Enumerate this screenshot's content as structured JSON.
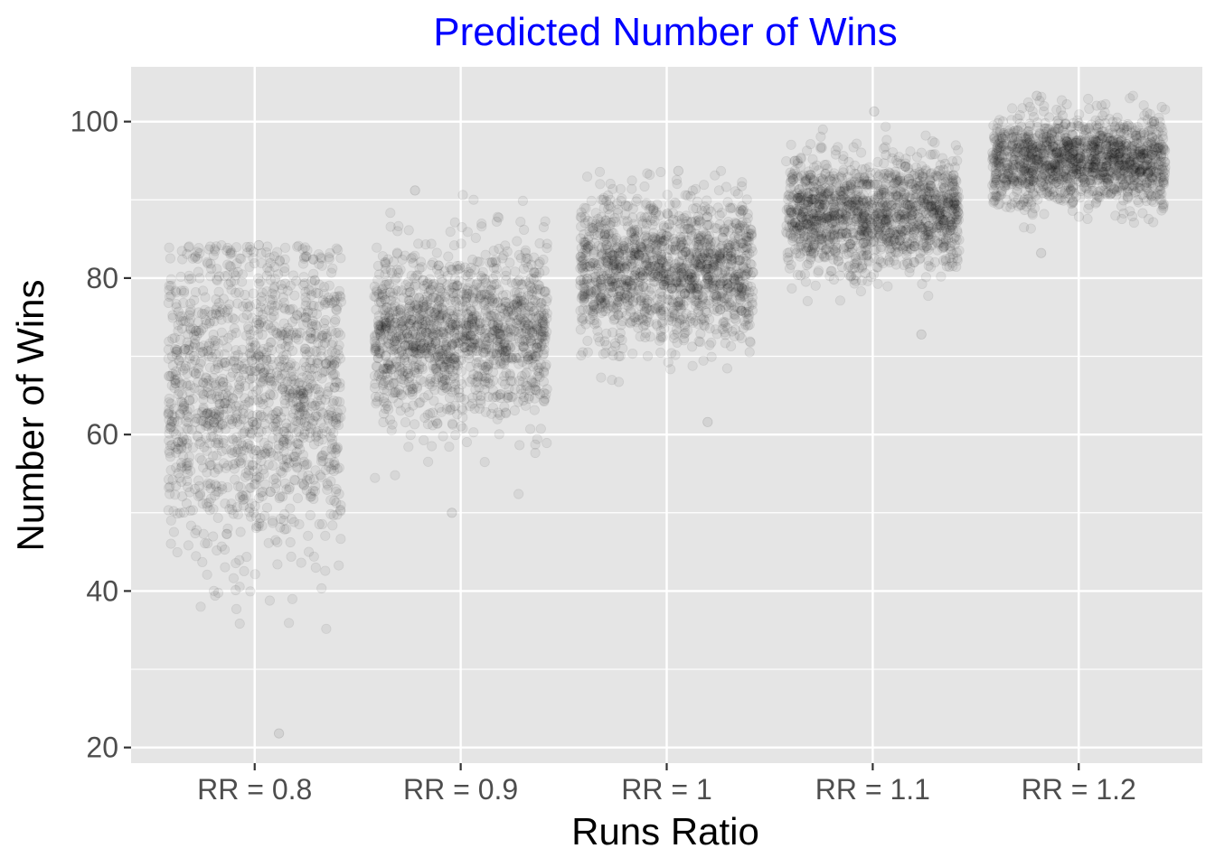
{
  "chart_data": {
    "type": "scatter",
    "title": "Predicted Number of Wins",
    "xlabel": "Runs Ratio",
    "ylabel": "Number of Wins",
    "categories": [
      "RR = 0.8",
      "RR = 0.9",
      "RR = 1",
      "RR = 1.1",
      "RR = 1.2"
    ],
    "y_ticks": [
      "20",
      "40",
      "60",
      "80",
      "100"
    ],
    "ylim": [
      18,
      107
    ],
    "grid": true,
    "jitter": true,
    "series": [
      {
        "category": "RR = 0.8",
        "center": 64.8,
        "min": 21.8,
        "max": 84.2
      },
      {
        "category": "RR = 0.9",
        "center": 72.9,
        "min": 50.0,
        "max": 91.2
      },
      {
        "category": "RR = 1",
        "center": 81.0,
        "min": 61.6,
        "max": 93.7
      },
      {
        "category": "RR = 1.1",
        "center": 88.0,
        "min": 72.8,
        "max": 101.3
      },
      {
        "category": "RR = 1.2",
        "center": 95.0,
        "min": 83.2,
        "max": 103.3
      }
    ],
    "colors": {
      "panel": "#e5e5e5",
      "grid": "#ffffff",
      "point": "#000000",
      "title": "#0000ff",
      "tick": "#4d4d4d"
    }
  }
}
